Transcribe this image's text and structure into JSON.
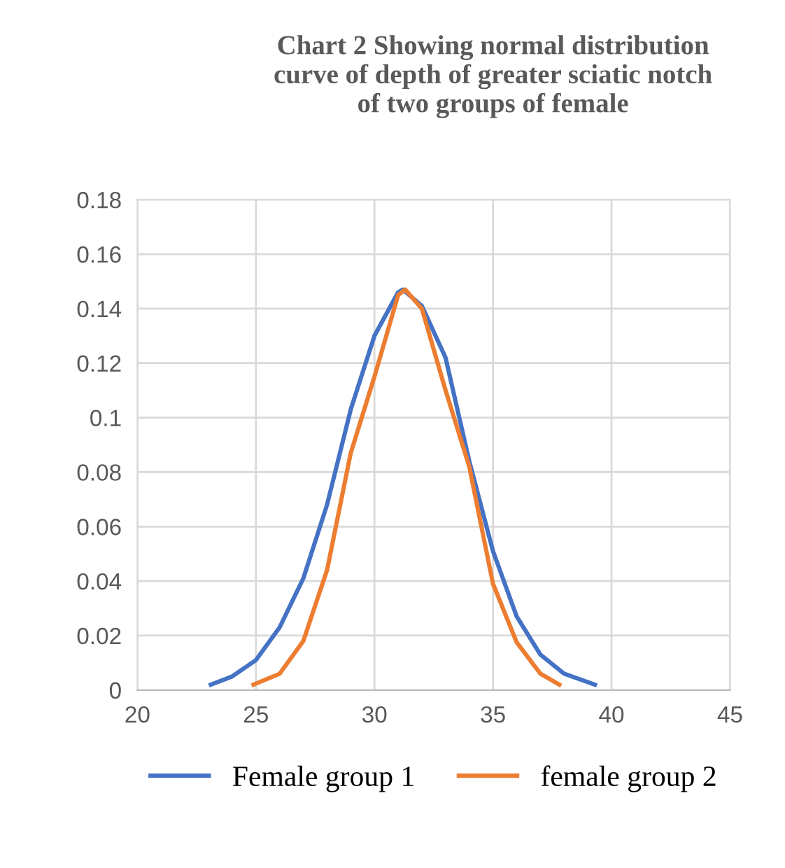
{
  "chart_data": {
    "type": "line",
    "title": "Chart 2 Showing normal distribution\ncurve of depth of greater sciatic notch\nof two groups of female",
    "series": [
      {
        "name": "Female group 1",
        "color": "#4472c4",
        "x": [
          23.1,
          24,
          25,
          26,
          27,
          28,
          29,
          30,
          31,
          31.2,
          32,
          33,
          34,
          35,
          36,
          37,
          38,
          39.3
        ],
        "values": [
          0.002,
          0.005,
          0.011,
          0.023,
          0.041,
          0.068,
          0.103,
          0.13,
          0.146,
          0.147,
          0.141,
          0.122,
          0.084,
          0.051,
          0.027,
          0.013,
          0.006,
          0.002
        ]
      },
      {
        "name": "female group 2",
        "color": "#ed7d31",
        "x": [
          24.9,
          26,
          27,
          28,
          29,
          30,
          31,
          31.3,
          32,
          33,
          34,
          35,
          36,
          37,
          37.8
        ],
        "values": [
          0.002,
          0.006,
          0.018,
          0.044,
          0.087,
          0.115,
          0.145,
          0.147,
          0.14,
          0.11,
          0.082,
          0.039,
          0.0175,
          0.006,
          0.002
        ]
      }
    ],
    "xlim": [
      20,
      45
    ],
    "xticks": [
      20,
      25,
      30,
      35,
      40,
      45
    ],
    "ylim": [
      0,
      0.18
    ],
    "yticks": [
      0,
      0.02,
      0.04,
      0.06,
      0.08,
      0.1,
      0.12,
      0.14,
      0.16,
      0.18
    ],
    "grid": true,
    "legend": "bottom",
    "line_style": "solid",
    "marker": "none"
  }
}
